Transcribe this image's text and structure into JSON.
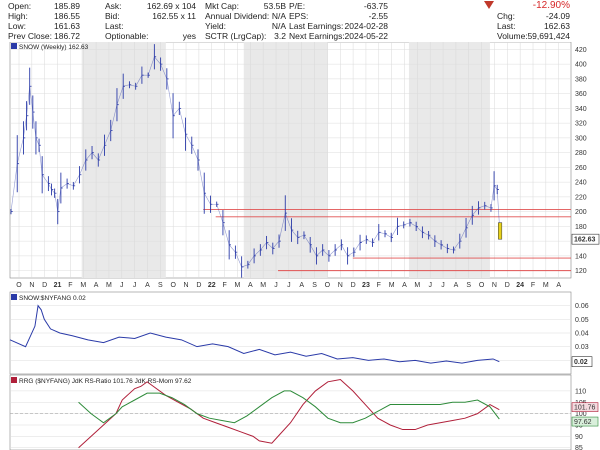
{
  "quote": {
    "col1": [
      {
        "label": "Open:",
        "value": "185.89"
      },
      {
        "label": "High:",
        "value": "186.55"
      },
      {
        "label": "Low:",
        "value": "161.63"
      },
      {
        "label": "Prev Close:",
        "value": "186.72"
      }
    ],
    "col2": [
      {
        "label": "Ask:",
        "value": "162.69 x 104"
      },
      {
        "label": "Bid:",
        "value": "162.55 x 11"
      },
      {
        "label": "Last:",
        "value": ""
      },
      {
        "label": "Optionable:",
        "value": "yes"
      }
    ],
    "col3": [
      {
        "label": "Mkt Cap:",
        "value": "53.5B"
      },
      {
        "label": "Annual Dividend:",
        "value": "N/A"
      },
      {
        "label": "Yield:",
        "value": "N/A"
      },
      {
        "label": "SCTR (LrgCap):",
        "value": "3.2"
      }
    ],
    "col4": [
      {
        "label": "P/E:",
        "value": "-63.75"
      },
      {
        "label": "EPS:",
        "value": "-2.55"
      },
      {
        "label": "Last Earnings:",
        "value": "2024-02-28"
      },
      {
        "label": "Next Earnings:",
        "value": "2024-05-22"
      }
    ],
    "col5": [
      {
        "label": "",
        "value": "-12.90%"
      },
      {
        "label": "Chg:",
        "value": "-24.09"
      },
      {
        "label": "Last:",
        "value": "162.63"
      },
      {
        "label": "Volume:",
        "value": "59,691,424"
      }
    ],
    "down_color": "#c0392b"
  },
  "chart_data": [
    {
      "type": "ohlc",
      "title": "SNOW (Weekly) 162.63",
      "last_price_label": "162.63",
      "ylim": [
        110,
        430
      ],
      "yticks": [
        "120",
        "140",
        "160",
        "180",
        "200",
        "220",
        "240",
        "260",
        "280",
        "300",
        "320",
        "340",
        "360",
        "380",
        "400",
        "420"
      ],
      "x_ticks": [
        "O",
        "N",
        "D",
        "21",
        "F",
        "M",
        "A",
        "M",
        "J",
        "J",
        "A",
        "S",
        "O",
        "N",
        "D",
        "22",
        "F",
        "M",
        "A",
        "M",
        "J",
        "J",
        "A",
        "S",
        "O",
        "N",
        "D",
        "23",
        "F",
        "M",
        "A",
        "M",
        "J",
        "J",
        "A",
        "S",
        "O",
        "N",
        "D",
        "24",
        "F",
        "M",
        "A"
      ],
      "support_lines": [
        203,
        193,
        137,
        120
      ],
      "close_path": [
        [
          0,
          200
        ],
        [
          2,
          265
        ],
        [
          4,
          300
        ],
        [
          5,
          330
        ],
        [
          6,
          370
        ],
        [
          7,
          335
        ],
        [
          8,
          300
        ],
        [
          9,
          290
        ],
        [
          10,
          250
        ],
        [
          12,
          238
        ],
        [
          13,
          230
        ],
        [
          14,
          225
        ],
        [
          15,
          200
        ],
        [
          16,
          232
        ],
        [
          18,
          238
        ],
        [
          20,
          235
        ],
        [
          22,
          250
        ],
        [
          24,
          270
        ],
        [
          26,
          280
        ],
        [
          28,
          270
        ],
        [
          30,
          290
        ],
        [
          32,
          310
        ],
        [
          34,
          345
        ],
        [
          36,
          370
        ],
        [
          38,
          372
        ],
        [
          40,
          370
        ],
        [
          42,
          385
        ],
        [
          44,
          385
        ],
        [
          46,
          410
        ],
        [
          48,
          400
        ],
        [
          50,
          380
        ],
        [
          52,
          330
        ],
        [
          54,
          340
        ],
        [
          56,
          305
        ],
        [
          58,
          290
        ],
        [
          60,
          270
        ],
        [
          62,
          225
        ],
        [
          64,
          210
        ],
        [
          66,
          210
        ],
        [
          68,
          185
        ],
        [
          70,
          155
        ],
        [
          72,
          145
        ],
        [
          74,
          125
        ],
        [
          76,
          128
        ],
        [
          78,
          140
        ],
        [
          80,
          148
        ],
        [
          82,
          158
        ],
        [
          84,
          150
        ],
        [
          86,
          160
        ],
        [
          88,
          198
        ],
        [
          90,
          175
        ],
        [
          92,
          165
        ],
        [
          94,
          168
        ],
        [
          96,
          155
        ],
        [
          98,
          140
        ],
        [
          100,
          148
        ],
        [
          102,
          140
        ],
        [
          104,
          148
        ],
        [
          106,
          155
        ],
        [
          108,
          140
        ],
        [
          110,
          145
        ],
        [
          112,
          158
        ],
        [
          114,
          162
        ],
        [
          116,
          158
        ],
        [
          118,
          172
        ],
        [
          120,
          170
        ],
        [
          122,
          165
        ],
        [
          124,
          180
        ],
        [
          126,
          182
        ],
        [
          128,
          185
        ],
        [
          130,
          180
        ],
        [
          132,
          172
        ],
        [
          134,
          168
        ],
        [
          136,
          160
        ],
        [
          138,
          155
        ],
        [
          140,
          150
        ],
        [
          142,
          148
        ],
        [
          144,
          160
        ],
        [
          146,
          178
        ],
        [
          148,
          195
        ],
        [
          150,
          205
        ],
        [
          152,
          208
        ],
        [
          154,
          205
        ],
        [
          155,
          235
        ],
        [
          156,
          230
        ],
        [
          157,
          162.63
        ]
      ],
      "grey_bands": [
        [
          23,
          50
        ],
        [
          75,
          102
        ],
        [
          128,
          154
        ]
      ],
      "highlight_week": {
        "x": 157,
        "from": 185,
        "to": 162.63
      },
      "series_color": "#2a3aa8"
    },
    {
      "type": "line",
      "title": "SNOW:$NYFANG 0.02",
      "last_value_label": "0.02",
      "ylim": [
        0.01,
        0.07
      ],
      "yticks": [
        "0.06",
        "0.05",
        "0.04",
        "0.03",
        "0.02"
      ],
      "values": [
        [
          0,
          0.035
        ],
        [
          5,
          0.03
        ],
        [
          8,
          0.045
        ],
        [
          9,
          0.06
        ],
        [
          10,
          0.057
        ],
        [
          11,
          0.05
        ],
        [
          13,
          0.043
        ],
        [
          16,
          0.04
        ],
        [
          20,
          0.038
        ],
        [
          25,
          0.035
        ],
        [
          30,
          0.033
        ],
        [
          35,
          0.037
        ],
        [
          40,
          0.036
        ],
        [
          45,
          0.04
        ],
        [
          50,
          0.037
        ],
        [
          55,
          0.035
        ],
        [
          60,
          0.03
        ],
        [
          65,
          0.032
        ],
        [
          70,
          0.03
        ],
        [
          75,
          0.025
        ],
        [
          80,
          0.028
        ],
        [
          85,
          0.024
        ],
        [
          90,
          0.026
        ],
        [
          95,
          0.023
        ],
        [
          100,
          0.025
        ],
        [
          105,
          0.021
        ],
        [
          110,
          0.022
        ],
        [
          115,
          0.02
        ],
        [
          120,
          0.021
        ],
        [
          125,
          0.019
        ],
        [
          130,
          0.02
        ],
        [
          135,
          0.018
        ],
        [
          140,
          0.0195
        ],
        [
          145,
          0.018
        ],
        [
          150,
          0.02
        ],
        [
          155,
          0.021
        ],
        [
          157,
          0.019
        ]
      ],
      "color": "#2a3aa8"
    },
    {
      "type": "line",
      "title": "RRG ($NYFANG) JdK RS-Ratio 101.76 JdK RS-Mom 97.62",
      "ylim": [
        84,
        117
      ],
      "yticks": [
        "110",
        "105",
        "100",
        "95",
        "90",
        "85"
      ],
      "right_labels": [
        "101.76",
        "97.62"
      ],
      "series": [
        {
          "name": "JdK RS-Ratio",
          "color": "#b0203a",
          "values": [
            [
              22,
              85
            ],
            [
              26,
              90
            ],
            [
              30,
              95
            ],
            [
              34,
              100
            ],
            [
              36,
              106
            ],
            [
              40,
              111
            ],
            [
              42,
              112
            ],
            [
              44,
              114
            ],
            [
              46,
              112
            ],
            [
              50,
              108
            ],
            [
              54,
              105
            ],
            [
              58,
              102
            ],
            [
              62,
              98
            ],
            [
              66,
              96
            ],
            [
              70,
              94
            ],
            [
              74,
              92
            ],
            [
              78,
              90
            ],
            [
              80,
              88
            ],
            [
              84,
              87
            ],
            [
              86,
              90
            ],
            [
              90,
              96
            ],
            [
              94,
              104
            ],
            [
              98,
              110
            ],
            [
              102,
              114
            ],
            [
              106,
              115
            ],
            [
              110,
              110
            ],
            [
              114,
              104
            ],
            [
              118,
              98
            ],
            [
              122,
              95
            ],
            [
              126,
              93
            ],
            [
              130,
              93
            ],
            [
              134,
              95
            ],
            [
              138,
              96
            ],
            [
              142,
              97
            ],
            [
              146,
              98
            ],
            [
              150,
              100
            ],
            [
              154,
              104
            ],
            [
              157,
              101.76
            ]
          ]
        },
        {
          "name": "JdK RS-Mom",
          "color": "#2e8b3a",
          "values": [
            [
              22,
              105
            ],
            [
              26,
              100
            ],
            [
              30,
              96
            ],
            [
              34,
              100
            ],
            [
              36,
              103
            ],
            [
              40,
              106
            ],
            [
              44,
              109
            ],
            [
              48,
              109
            ],
            [
              52,
              107
            ],
            [
              56,
              104
            ],
            [
              60,
              100
            ],
            [
              64,
              98
            ],
            [
              68,
              97
            ],
            [
              72,
              96
            ],
            [
              76,
              99
            ],
            [
              80,
              103
            ],
            [
              84,
              107
            ],
            [
              88,
              110
            ],
            [
              90,
              110
            ],
            [
              94,
              107
            ],
            [
              98,
              103
            ],
            [
              102,
              98
            ],
            [
              106,
              96
            ],
            [
              110,
              96
            ],
            [
              114,
              98
            ],
            [
              118,
              101
            ],
            [
              122,
              104
            ],
            [
              126,
              104
            ],
            [
              130,
              104
            ],
            [
              134,
              104
            ],
            [
              138,
              104
            ],
            [
              142,
              105
            ],
            [
              146,
              105
            ],
            [
              150,
              106
            ],
            [
              154,
              103
            ],
            [
              157,
              97.62
            ]
          ]
        }
      ]
    }
  ]
}
